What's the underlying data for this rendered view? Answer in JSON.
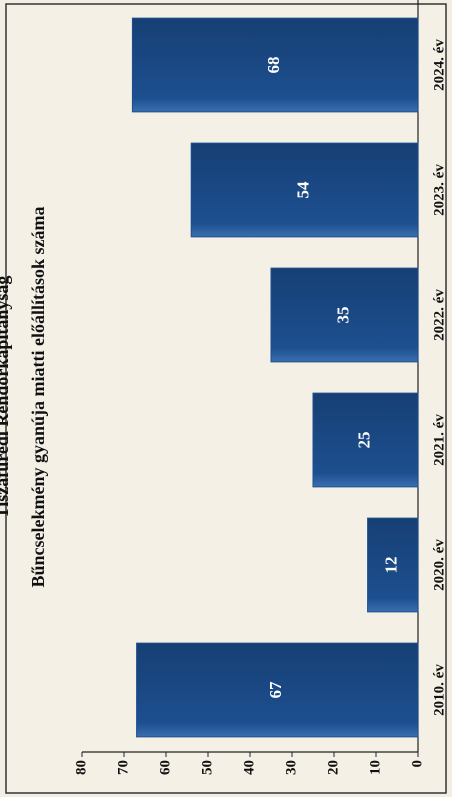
{
  "chart_data": {
    "type": "bar",
    "title": "Tiszafüredi Rendőrkapitányság",
    "subtitle": "Bűncselekmény gyanúja miatti előállítások száma",
    "categories": [
      "2010. év",
      "2020. év",
      "2021. év",
      "2022. év",
      "2023. év",
      "2024. év"
    ],
    "values": [
      67,
      12,
      25,
      35,
      54,
      68
    ],
    "color": "#1d4f8f",
    "ylim": [
      0,
      80
    ],
    "yticks": [
      0,
      10,
      20,
      30,
      40,
      50,
      60,
      70,
      80
    ],
    "grid": false
  }
}
